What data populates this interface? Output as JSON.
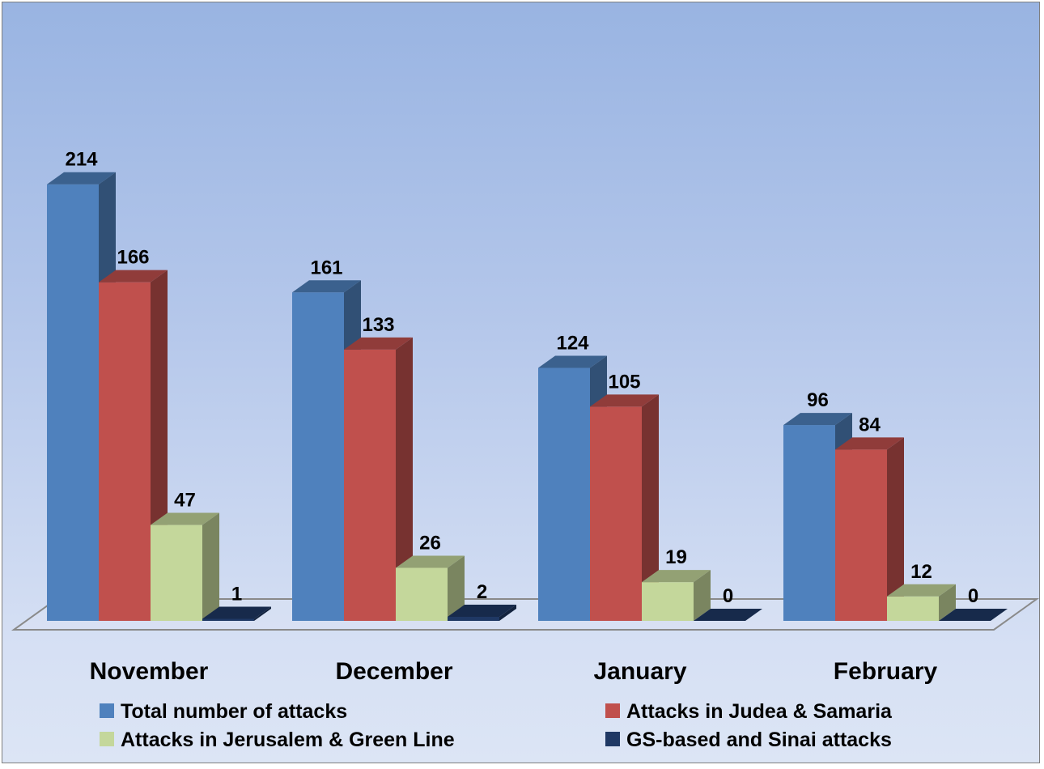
{
  "chart_data": {
    "type": "bar",
    "three_d": true,
    "categories": [
      "November",
      "December",
      "January",
      "February"
    ],
    "series": [
      {
        "name": "Total number of attacks",
        "values": [
          214,
          161,
          124,
          96
        ],
        "color": "#4f81bd"
      },
      {
        "name": "Attacks in Judea & Samaria",
        "values": [
          166,
          133,
          105,
          84
        ],
        "color": "#c0504d"
      },
      {
        "name": "Attacks in Jerusalem & Green Line",
        "values": [
          47,
          26,
          19,
          12
        ],
        "color": "#c4d79b"
      },
      {
        "name": "GS-based and Sinai attacks",
        "values": [
          1,
          2,
          0,
          0
        ],
        "color": "#1f3864"
      }
    ],
    "title": "",
    "xlabel": "",
    "ylabel": "",
    "ylim": [
      0,
      240
    ],
    "grid": false,
    "legend_position": "bottom"
  }
}
